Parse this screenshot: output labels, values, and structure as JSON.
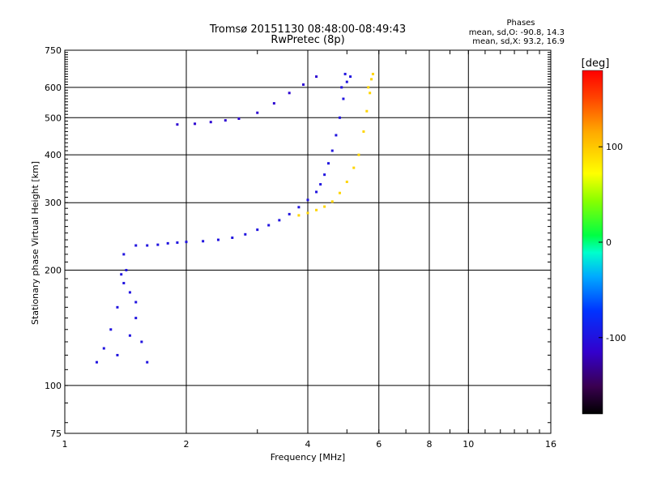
{
  "header": {
    "title_line1": "Tromsø 20151130 08:48:00-08:49:43",
    "title_line2": "RwPretec (8p)",
    "phases_title": "Phases",
    "phases_line1": "mean, sd,O: -90.8, 14.3",
    "phases_line2": "mean, sd,X:  93.2, 16.9"
  },
  "colorbar": {
    "label": "[deg]",
    "ticks": [
      "100",
      "0",
      "-100"
    ],
    "tick_values": [
      100,
      0,
      -100
    ],
    "range": [
      -180,
      180
    ]
  },
  "chart_data": {
    "type": "scatter",
    "xlabel": "Frequency [MHz]",
    "ylabel": "Stationary phase Virtual Height [km]",
    "xscale": "log",
    "yscale": "log",
    "xlim": [
      1,
      16
    ],
    "ylim": [
      75,
      750
    ],
    "xticks": [
      1,
      2,
      4,
      6,
      8,
      10,
      16
    ],
    "xtick_labels": [
      "1",
      "2",
      "4",
      "6",
      "8",
      "10",
      "16"
    ],
    "yticks": [
      75,
      100,
      200,
      300,
      400,
      500,
      600,
      750
    ],
    "ytick_labels": [
      "75",
      "100",
      "200",
      "300",
      "400",
      "500",
      "600",
      "750"
    ],
    "grid": true,
    "series": [
      {
        "role": "O-mode F-layer trace",
        "phase_deg": -100,
        "points": [
          [
            1.5,
            232
          ],
          [
            1.6,
            232
          ],
          [
            1.7,
            233
          ],
          [
            1.8,
            235
          ],
          [
            1.9,
            236
          ],
          [
            2.0,
            237
          ],
          [
            2.2,
            238
          ],
          [
            2.4,
            240
          ],
          [
            2.6,
            243
          ],
          [
            2.8,
            248
          ],
          [
            3.0,
            255
          ],
          [
            3.2,
            262
          ],
          [
            3.4,
            270
          ],
          [
            3.6,
            280
          ],
          [
            3.8,
            292
          ],
          [
            4.0,
            305
          ],
          [
            4.2,
            320
          ],
          [
            4.3,
            335
          ],
          [
            4.4,
            355
          ],
          [
            4.5,
            380
          ],
          [
            4.6,
            410
          ],
          [
            4.7,
            450
          ],
          [
            4.8,
            500
          ],
          [
            4.9,
            560
          ],
          [
            5.0,
            620
          ],
          [
            4.85,
            600
          ],
          [
            4.95,
            650
          ],
          [
            5.1,
            640
          ]
        ]
      },
      {
        "role": "O-mode low-frequency cluster",
        "phase_deg": -100,
        "points": [
          [
            1.2,
            115
          ],
          [
            1.25,
            125
          ],
          [
            1.3,
            140
          ],
          [
            1.35,
            160
          ],
          [
            1.4,
            185
          ],
          [
            1.42,
            200
          ],
          [
            1.45,
            175
          ],
          [
            1.5,
            150
          ],
          [
            1.55,
            130
          ],
          [
            1.6,
            115
          ],
          [
            1.35,
            120
          ],
          [
            1.45,
            135
          ],
          [
            1.5,
            165
          ],
          [
            1.38,
            195
          ],
          [
            1.4,
            220
          ]
        ]
      },
      {
        "role": "O-mode upper trace",
        "phase_deg": -110,
        "points": [
          [
            1.9,
            480
          ],
          [
            2.1,
            482
          ],
          [
            2.3,
            487
          ],
          [
            2.5,
            492
          ],
          [
            2.7,
            497
          ],
          [
            3.0,
            515
          ],
          [
            3.3,
            545
          ],
          [
            3.6,
            580
          ],
          [
            3.9,
            610
          ],
          [
            4.2,
            640
          ]
        ]
      },
      {
        "role": "X-mode F-layer trace",
        "phase_deg": 95,
        "points": [
          [
            3.8,
            278
          ],
          [
            4.0,
            282
          ],
          [
            4.2,
            287
          ],
          [
            4.4,
            293
          ],
          [
            4.6,
            302
          ],
          [
            4.8,
            318
          ],
          [
            5.0,
            340
          ],
          [
            5.2,
            370
          ],
          [
            5.35,
            400
          ],
          [
            5.5,
            460
          ],
          [
            5.6,
            520
          ],
          [
            5.7,
            580
          ],
          [
            5.75,
            630
          ],
          [
            5.65,
            600
          ],
          [
            5.8,
            650
          ]
        ]
      }
    ]
  }
}
